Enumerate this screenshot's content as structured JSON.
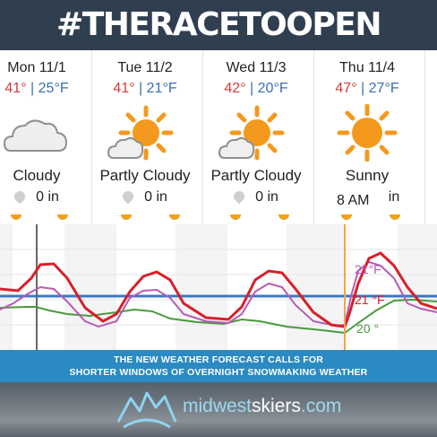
{
  "header": {
    "hashtag": "#THERACETOOPEN"
  },
  "forecast": {
    "days": [
      {
        "name": "Mon 11/1",
        "high": "41°",
        "low": "25°F",
        "condition": "Cloudy",
        "icon": "cloud-icon",
        "precip": "0 in"
      },
      {
        "name": "Tue 11/2",
        "high": "41°",
        "low": "21°F",
        "condition": "Partly Cloudy",
        "icon": "partly-cloudy-icon",
        "precip": "0 in"
      },
      {
        "name": "Wed 11/3",
        "high": "42°",
        "low": "20°F",
        "condition": "Partly Cloudy",
        "icon": "partly-cloudy-icon",
        "precip": "0 in"
      },
      {
        "name": "Thu 11/4",
        "high": "47°",
        "low": "27°F",
        "condition": "Sunny",
        "icon": "sun-icon",
        "precip": "in"
      }
    ],
    "separator": " | ",
    "hover_time": "8 AM"
  },
  "graph": {
    "labels": {
      "temp_a": "21°F",
      "temp_b": "21 °F",
      "dewpoint": "20 °"
    },
    "colors": {
      "temperature": "#d81f2a",
      "wind_chill": "#b65bb7",
      "dewpoint": "#4a9a3e",
      "freezing": "#3b78c2",
      "cursor": "#f3a24a"
    }
  },
  "caption": {
    "line1": "THE NEW WEATHER FORECAST CALLS FOR",
    "line2": "SHORTER WINDOWS OF OVERNIGHT SNOWMAKING WEATHER"
  },
  "brand": {
    "name_a": "midwest",
    "name_b": "skiers",
    "name_c": ".com"
  },
  "colors": {
    "banner": "#303f4f",
    "caption_bg": "#2a8ac1",
    "sun": "#f39a1e"
  }
}
